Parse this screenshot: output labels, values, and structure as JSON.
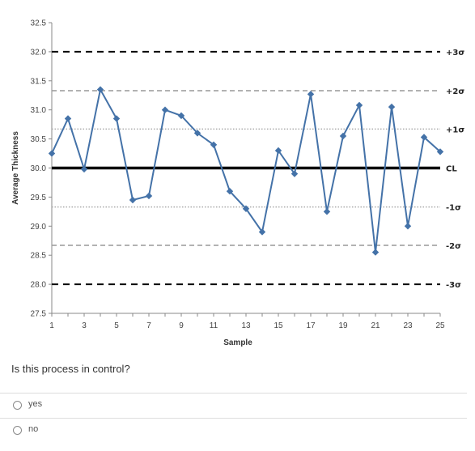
{
  "chart_data": {
    "type": "line",
    "xlabel": "Sample",
    "ylabel": "Average Thickness",
    "xlim": [
      1,
      25
    ],
    "ylim": [
      27.5,
      32.5
    ],
    "xticks": [
      1,
      3,
      5,
      7,
      9,
      11,
      13,
      15,
      17,
      19,
      21,
      23,
      25
    ],
    "yticks": [
      "27.5",
      "28.0",
      "28.5",
      "29.0",
      "29.5",
      "30.0",
      "30.5",
      "31.0",
      "31.5",
      "32.0",
      "32.5"
    ],
    "x": [
      1,
      2,
      3,
      4,
      5,
      6,
      7,
      8,
      9,
      10,
      11,
      12,
      13,
      14,
      15,
      16,
      17,
      18,
      19,
      20,
      21,
      22,
      23,
      24,
      25
    ],
    "series": [
      {
        "values": [
          30.25,
          30.85,
          29.98,
          31.35,
          30.85,
          29.45,
          29.52,
          31.0,
          30.9,
          30.6,
          30.4,
          29.6,
          29.3,
          28.9,
          30.3,
          29.9,
          31.27,
          29.25,
          30.55,
          31.08,
          28.55,
          31.05,
          29.0,
          30.53,
          30.28
        ],
        "color": "#4472a8"
      }
    ],
    "control_lines": [
      {
        "label": "+3σ",
        "value": 32.0,
        "style": "dashed-bold",
        "color": "#000000"
      },
      {
        "label": "+2σ",
        "value": 31.33,
        "style": "dashed",
        "color": "#999999"
      },
      {
        "label": "+1σ",
        "value": 30.67,
        "style": "dotted",
        "color": "#aaaaaa"
      },
      {
        "label": "CL",
        "value": 30.0,
        "style": "solid-bold",
        "color": "#000000"
      },
      {
        "label": "-1σ",
        "value": 29.33,
        "style": "dotted",
        "color": "#aaaaaa"
      },
      {
        "label": "-2σ",
        "value": 28.67,
        "style": "dashed",
        "color": "#999999"
      },
      {
        "label": "-3σ",
        "value": 28.0,
        "style": "dashed-bold",
        "color": "#000000"
      }
    ],
    "grid": false,
    "legend": "none"
  },
  "question": {
    "text": "Is this process in control?",
    "options": [
      {
        "label": "yes"
      },
      {
        "label": "no"
      }
    ]
  }
}
